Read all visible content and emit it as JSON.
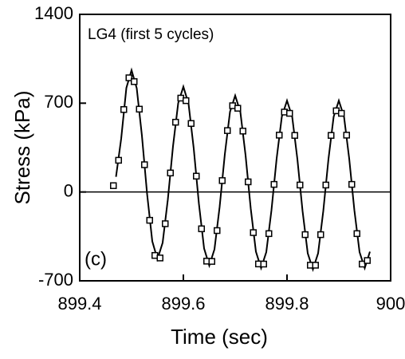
{
  "chart_data": {
    "type": "line",
    "annotations": [
      "LG4 (first 5 cycles)",
      "(c)"
    ],
    "xlabel": "Time (sec)",
    "ylabel": "Stress (kPa)",
    "xlim": [
      899.4,
      900
    ],
    "xticks": [
      899.4,
      899.6,
      899.8,
      900
    ],
    "ylim": [
      -700,
      1400
    ],
    "yticks": [
      -700,
      0,
      700,
      1400
    ],
    "zero_line": true,
    "color": "#000000",
    "series": [
      {
        "style": "line",
        "x": [
          899.47,
          899.48,
          899.49,
          899.5,
          899.51,
          899.52,
          899.53,
          899.54,
          899.55,
          899.56,
          899.57,
          899.58,
          899.59,
          899.6,
          899.61,
          899.62,
          899.63,
          899.64,
          899.65,
          899.66,
          899.67,
          899.68,
          899.69,
          899.7,
          899.71,
          899.72,
          899.73,
          899.74,
          899.75,
          899.76,
          899.77,
          899.78,
          899.79,
          899.8,
          899.81,
          899.82,
          899.83,
          899.84,
          899.85,
          899.86,
          899.87,
          899.88,
          899.89,
          899.9,
          899.91,
          899.92,
          899.93,
          899.94,
          899.95,
          899.96
        ],
        "values": [
          120,
          420,
          820,
          960,
          818,
          445,
          -15,
          -388,
          -530,
          -400,
          -60,
          360,
          700,
          830,
          695,
          343,
          -93,
          -445,
          -580,
          -452,
          -117,
          297,
          632,
          760,
          630,
          290,
          -130,
          -470,
          -600,
          -474,
          -144,
          264,
          594,
          720,
          593,
          260,
          -150,
          -483,
          -610,
          -483,
          -150,
          260,
          593,
          720,
          594,
          264,
          -144,
          -474,
          -600,
          -470
        ]
      },
      {
        "style": "markers",
        "x": [
          899.465,
          899.475,
          899.485,
          899.495,
          899.505,
          899.515,
          899.525,
          899.535,
          899.545,
          899.555,
          899.565,
          899.575,
          899.585,
          899.595,
          899.605,
          899.615,
          899.625,
          899.635,
          899.645,
          899.655,
          899.665,
          899.675,
          899.685,
          899.695,
          899.705,
          899.715,
          899.725,
          899.735,
          899.745,
          899.755,
          899.765,
          899.775,
          899.785,
          899.795,
          899.805,
          899.815,
          899.825,
          899.835,
          899.845,
          899.855,
          899.865,
          899.875,
          899.885,
          899.895,
          899.905,
          899.915,
          899.925,
          899.935,
          899.945,
          899.955
        ],
        "values": [
          50,
          250,
          650,
          900,
          870,
          653,
          215,
          -223,
          -500,
          -520,
          -250,
          150,
          550,
          740,
          720,
          540,
          125,
          -290,
          -545,
          -547,
          -304,
          90,
          484,
          680,
          660,
          480,
          80,
          -320,
          -567,
          -568,
          -328,
          60,
          448,
          630,
          620,
          446,
          55,
          -336,
          -577,
          -577,
          -336,
          55,
          446,
          640,
          620,
          448,
          60,
          -328,
          -568,
          -540
        ]
      }
    ]
  }
}
